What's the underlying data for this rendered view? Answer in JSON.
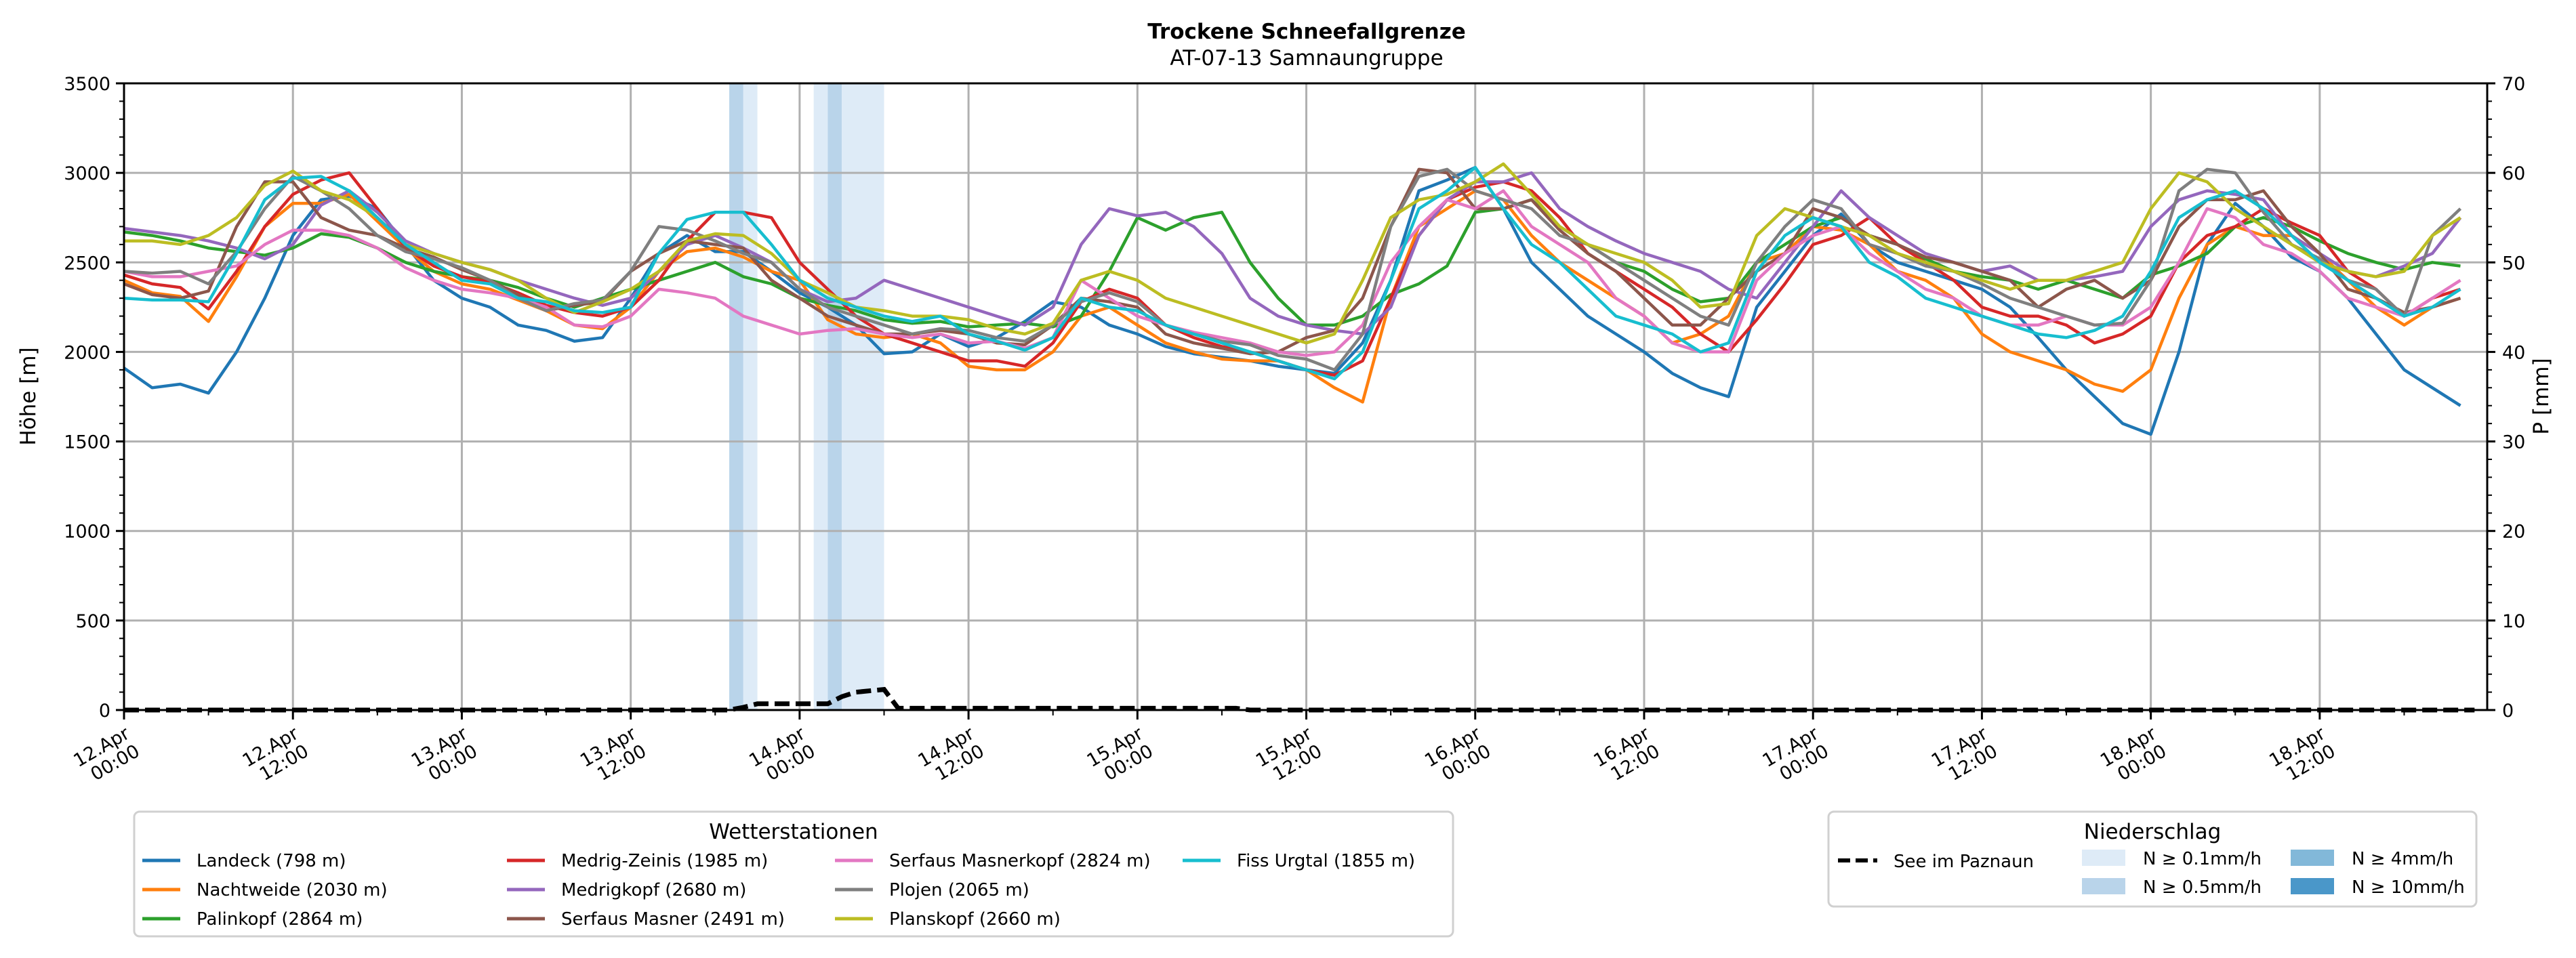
{
  "chart_data": {
    "type": "line",
    "title": "Trockene Schneefallgrenze",
    "subtitle": "AT-07-13 Samnaungruppe",
    "ylabel": "Höhe [m]",
    "y2label": "P [mm]",
    "ylim": [
      0,
      3500
    ],
    "y2lim": [
      0,
      70
    ],
    "yticks": [
      0,
      500,
      1000,
      1500,
      2000,
      2500,
      3000,
      3500
    ],
    "y2ticks": [
      0,
      10,
      20,
      30,
      40,
      50,
      60,
      70
    ],
    "grid": true,
    "x_unit": "hours since 12.Apr 00:00",
    "xlim": [
      0,
      167
    ],
    "x_step_hours": 2,
    "xticks": [
      {
        "h": 0,
        "label": "12.Apr\n00:00"
      },
      {
        "h": 12,
        "label": "12.Apr\n12:00"
      },
      {
        "h": 24,
        "label": "13.Apr\n00:00"
      },
      {
        "h": 36,
        "label": "13.Apr\n12:00"
      },
      {
        "h": 48,
        "label": "14.Apr\n00:00"
      },
      {
        "h": 60,
        "label": "14.Apr\n12:00"
      },
      {
        "h": 72,
        "label": "15.Apr\n00:00"
      },
      {
        "h": 84,
        "label": "15.Apr\n12:00"
      },
      {
        "h": 96,
        "label": "16.Apr\n00:00"
      },
      {
        "h": 108,
        "label": "16.Apr\n12:00"
      },
      {
        "h": 120,
        "label": "17.Apr\n00:00"
      },
      {
        "h": 132,
        "label": "17.Apr\n12:00"
      },
      {
        "h": 144,
        "label": "18.Apr\n00:00"
      },
      {
        "h": 156,
        "label": "18.Apr\n12:00"
      }
    ],
    "legend_stations": {
      "title": "Wetterstationen",
      "placement": "bottom-left"
    },
    "series": [
      {
        "name": "Landeck (798 m)",
        "color": "#1f77b4",
        "values": [
          1910,
          1800,
          1820,
          1770,
          2000,
          2300,
          2650,
          2850,
          2870,
          2800,
          2600,
          2400,
          2300,
          2250,
          2150,
          2120,
          2060,
          2080,
          2300,
          2550,
          2650,
          2560,
          2560,
          2450,
          2330,
          2250,
          2150,
          1990,
          2000,
          2100,
          2030,
          2080,
          2170,
          2280,
          2250,
          2150,
          2100,
          2030,
          1990,
          1970,
          1950,
          1920,
          1900,
          1880,
          2050,
          2400,
          2900,
          2960,
          3030,
          2800,
          2500,
          2350,
          2200,
          2100,
          2000,
          1880,
          1800,
          1750,
          2250,
          2450,
          2650,
          2770,
          2600,
          2500,
          2450,
          2400,
          2350,
          2250,
          2080,
          1900,
          1750,
          1600,
          1540,
          2000,
          2600,
          2830,
          2700,
          2530,
          2450,
          2300,
          2100,
          1900,
          1800,
          1700
        ]
      },
      {
        "name": "Nachtweide (2030 m)",
        "color": "#ff7f0e",
        "values": [
          2400,
          2330,
          2310,
          2170,
          2420,
          2700,
          2830,
          2830,
          2880,
          2730,
          2580,
          2450,
          2380,
          2350,
          2290,
          2230,
          2150,
          2130,
          2250,
          2450,
          2560,
          2580,
          2530,
          2450,
          2400,
          2180,
          2100,
          2080,
          2100,
          2050,
          1920,
          1900,
          1900,
          2000,
          2200,
          2250,
          2150,
          2050,
          2000,
          1960,
          1950,
          1950,
          1900,
          1800,
          1720,
          2300,
          2700,
          2800,
          2900,
          2850,
          2650,
          2500,
          2400,
          2300,
          2200,
          2050,
          2100,
          2200,
          2500,
          2550,
          2700,
          2680,
          2600,
          2450,
          2400,
          2300,
          2100,
          2000,
          1950,
          1900,
          1820,
          1780,
          1900,
          2300,
          2600,
          2700,
          2650,
          2650,
          2550,
          2400,
          2250,
          2150,
          2250,
          2300
        ]
      },
      {
        "name": "Palinkopf (2864 m)",
        "color": "#2ca02c",
        "values": [
          2670,
          2650,
          2620,
          2580,
          2560,
          2540,
          2580,
          2660,
          2640,
          2580,
          2500,
          2450,
          2420,
          2400,
          2360,
          2300,
          2250,
          2300,
          2350,
          2400,
          2450,
          2500,
          2420,
          2380,
          2300,
          2260,
          2230,
          2180,
          2160,
          2170,
          2140,
          2150,
          2160,
          2140,
          2200,
          2450,
          2750,
          2680,
          2750,
          2780,
          2500,
          2300,
          2150,
          2150,
          2200,
          2320,
          2380,
          2480,
          2780,
          2800,
          2850,
          2700,
          2600,
          2500,
          2450,
          2350,
          2280,
          2300,
          2500,
          2600,
          2700,
          2750,
          2650,
          2600,
          2520,
          2450,
          2420,
          2400,
          2350,
          2400,
          2350,
          2300,
          2430,
          2480,
          2550,
          2700,
          2750,
          2700,
          2620,
          2550,
          2500,
          2460,
          2500,
          2480
        ]
      },
      {
        "name": "Medrig-Zeinis (1985 m)",
        "color": "#d62728",
        "values": [
          2430,
          2380,
          2360,
          2240,
          2450,
          2700,
          2880,
          2960,
          3000,
          2800,
          2580,
          2480,
          2420,
          2390,
          2330,
          2260,
          2220,
          2200,
          2250,
          2400,
          2620,
          2780,
          2780,
          2750,
          2500,
          2350,
          2200,
          2100,
          2050,
          2000,
          1950,
          1950,
          1920,
          2050,
          2280,
          2350,
          2300,
          2150,
          2080,
          2030,
          2000,
          1950,
          1900,
          1870,
          1950,
          2300,
          2650,
          2850,
          2920,
          2950,
          2900,
          2750,
          2550,
          2450,
          2350,
          2250,
          2100,
          2000,
          2180,
          2380,
          2600,
          2650,
          2750,
          2600,
          2500,
          2400,
          2250,
          2200,
          2200,
          2150,
          2050,
          2100,
          2200,
          2500,
          2650,
          2700,
          2800,
          2720,
          2650,
          2450,
          2350,
          2200,
          2300,
          2350
        ]
      },
      {
        "name": "Medrigkopf (2680 m)",
        "color": "#9467bd",
        "values": [
          2690,
          2670,
          2650,
          2620,
          2580,
          2520,
          2600,
          2820,
          2900,
          2780,
          2620,
          2550,
          2500,
          2460,
          2400,
          2350,
          2300,
          2260,
          2300,
          2450,
          2600,
          2650,
          2580,
          2500,
          2350,
          2280,
          2300,
          2400,
          2350,
          2300,
          2250,
          2200,
          2150,
          2250,
          2600,
          2800,
          2760,
          2780,
          2700,
          2550,
          2300,
          2200,
          2150,
          2120,
          2100,
          2250,
          2650,
          2850,
          2950,
          2950,
          3000,
          2800,
          2700,
          2620,
          2550,
          2500,
          2450,
          2350,
          2300,
          2500,
          2700,
          2900,
          2750,
          2650,
          2550,
          2500,
          2450,
          2480,
          2400,
          2400,
          2420,
          2450,
          2700,
          2850,
          2900,
          2880,
          2850,
          2650,
          2550,
          2450,
          2420,
          2480,
          2550,
          2750
        ]
      },
      {
        "name": "Serfaus Masner (2491 m)",
        "color": "#8c564b",
        "values": [
          2380,
          2320,
          2300,
          2340,
          2700,
          2950,
          2950,
          2750,
          2680,
          2650,
          2580,
          2530,
          2460,
          2400,
          2320,
          2230,
          2260,
          2280,
          2450,
          2550,
          2620,
          2600,
          2580,
          2400,
          2300,
          2200,
          2150,
          2100,
          2100,
          2120,
          2100,
          2050,
          2040,
          2150,
          2300,
          2280,
          2250,
          2100,
          2050,
          2020,
          1990,
          2000,
          2080,
          2120,
          2300,
          2700,
          3020,
          3000,
          2800,
          2800,
          2850,
          2680,
          2550,
          2450,
          2300,
          2150,
          2150,
          2300,
          2450,
          2550,
          2800,
          2750,
          2650,
          2600,
          2530,
          2500,
          2450,
          2400,
          2250,
          2350,
          2400,
          2300,
          2400,
          2700,
          2850,
          2850,
          2900,
          2700,
          2550,
          2350,
          2300,
          2220,
          2250,
          2300
        ]
      },
      {
        "name": "Serfaus Masnerkopf (2824 m)",
        "color": "#e377c2",
        "values": [
          2450,
          2420,
          2420,
          2450,
          2480,
          2600,
          2680,
          2680,
          2650,
          2580,
          2470,
          2400,
          2350,
          2330,
          2300,
          2250,
          2150,
          2140,
          2200,
          2350,
          2330,
          2300,
          2200,
          2150,
          2100,
          2120,
          2130,
          2100,
          2080,
          2100,
          2050,
          2060,
          2020,
          2080,
          2400,
          2300,
          2200,
          2150,
          2110,
          2080,
          2050,
          2000,
          1980,
          2000,
          2150,
          2500,
          2700,
          2850,
          2800,
          2900,
          2700,
          2600,
          2500,
          2300,
          2200,
          2050,
          2000,
          2000,
          2400,
          2550,
          2650,
          2700,
          2550,
          2450,
          2350,
          2300,
          2200,
          2150,
          2150,
          2200,
          2150,
          2150,
          2250,
          2500,
          2800,
          2750,
          2600,
          2550,
          2450,
          2300,
          2250,
          2200,
          2300,
          2400
        ]
      },
      {
        "name": "Plojen (2065 m)",
        "color": "#7f7f7f",
        "values": [
          2450,
          2440,
          2450,
          2380,
          2560,
          2800,
          2980,
          2900,
          2800,
          2650,
          2560,
          2520,
          2470,
          2400,
          2300,
          2230,
          2270,
          2290,
          2450,
          2700,
          2680,
          2620,
          2550,
          2500,
          2350,
          2250,
          2200,
          2150,
          2100,
          2130,
          2120,
          2080,
          2060,
          2150,
          2280,
          2330,
          2280,
          2150,
          2100,
          2060,
          2040,
          1980,
          1960,
          1900,
          2100,
          2700,
          2980,
          3020,
          2900,
          2850,
          2800,
          2650,
          2600,
          2500,
          2400,
          2300,
          2200,
          2150,
          2500,
          2700,
          2850,
          2800,
          2600,
          2550,
          2480,
          2450,
          2380,
          2300,
          2250,
          2200,
          2150,
          2160,
          2400,
          2900,
          3020,
          3000,
          2780,
          2600,
          2520,
          2400,
          2350,
          2200,
          2650,
          2800
        ]
      },
      {
        "name": "Planskopf (2660 m)",
        "color": "#bcbd22",
        "values": [
          2620,
          2620,
          2600,
          2650,
          2750,
          2930,
          3010,
          2900,
          2850,
          2750,
          2600,
          2550,
          2500,
          2460,
          2400,
          2300,
          2220,
          2280,
          2350,
          2450,
          2620,
          2660,
          2650,
          2550,
          2400,
          2330,
          2250,
          2230,
          2200,
          2200,
          2180,
          2130,
          2100,
          2160,
          2400,
          2450,
          2400,
          2300,
          2250,
          2200,
          2150,
          2100,
          2050,
          2100,
          2400,
          2750,
          2850,
          2880,
          2950,
          3050,
          2880,
          2700,
          2600,
          2550,
          2500,
          2400,
          2250,
          2270,
          2650,
          2800,
          2750,
          2700,
          2650,
          2550,
          2500,
          2450,
          2400,
          2350,
          2400,
          2400,
          2450,
          2500,
          2800,
          3000,
          2950,
          2800,
          2700,
          2600,
          2500,
          2450,
          2420,
          2450,
          2650,
          2750
        ]
      },
      {
        "name": "Fiss Urgtal  (1855 m)",
        "color": "#17becf",
        "values": [
          2300,
          2290,
          2290,
          2280,
          2550,
          2850,
          2970,
          2980,
          2900,
          2750,
          2600,
          2500,
          2400,
          2380,
          2300,
          2280,
          2230,
          2220,
          2250,
          2550,
          2740,
          2780,
          2780,
          2600,
          2400,
          2300,
          2250,
          2200,
          2170,
          2200,
          2100,
          2060,
          2010,
          2080,
          2300,
          2250,
          2230,
          2150,
          2100,
          2050,
          2000,
          1950,
          1900,
          1850,
          2000,
          2400,
          2800,
          2900,
          3030,
          2800,
          2600,
          2500,
          2350,
          2200,
          2150,
          2100,
          2000,
          2050,
          2450,
          2650,
          2750,
          2700,
          2500,
          2420,
          2300,
          2250,
          2200,
          2150,
          2100,
          2080,
          2120,
          2200,
          2450,
          2750,
          2850,
          2900,
          2800,
          2650,
          2500,
          2400,
          2300,
          2200,
          2250,
          2350
        ]
      }
    ],
    "precipitation": {
      "legend_title": "Niederschlag",
      "placement": "bottom-right",
      "dashed_series": {
        "name": "See im Paznaun",
        "color": "#000000",
        "axis": "y2",
        "points": [
          [
            0,
            0
          ],
          [
            43,
            0
          ],
          [
            44,
            0.3
          ],
          [
            45,
            0.7
          ],
          [
            48,
            0.7
          ],
          [
            50,
            0.7
          ],
          [
            51,
            1.5
          ],
          [
            52,
            2.0
          ],
          [
            54,
            2.3
          ],
          [
            55,
            0.2
          ],
          [
            79,
            0.2
          ],
          [
            80,
            0
          ],
          [
            167,
            0
          ]
        ]
      },
      "bands": [
        {
          "start_h": 43,
          "end_h": 44,
          "class": "N ≥ 0.5mm/h"
        },
        {
          "start_h": 44,
          "end_h": 45,
          "class": "N ≥ 0.1mm/h"
        },
        {
          "start_h": 49,
          "end_h": 50,
          "class": "N ≥ 0.1mm/h"
        },
        {
          "start_h": 50,
          "end_h": 51,
          "class": "N ≥ 0.5mm/h"
        },
        {
          "start_h": 51,
          "end_h": 54,
          "class": "N ≥ 0.1mm/h"
        }
      ],
      "classes": [
        {
          "label": "N ≥ 0.1mm/h",
          "color": "#deebf7"
        },
        {
          "label": "N ≥ 0.5mm/h",
          "color": "#b9d4ea"
        },
        {
          "label": "N ≥ 4mm/h",
          "color": "#82b8d9"
        },
        {
          "label": "N ≥ 10mm/h",
          "color": "#4a97c9"
        }
      ]
    }
  }
}
